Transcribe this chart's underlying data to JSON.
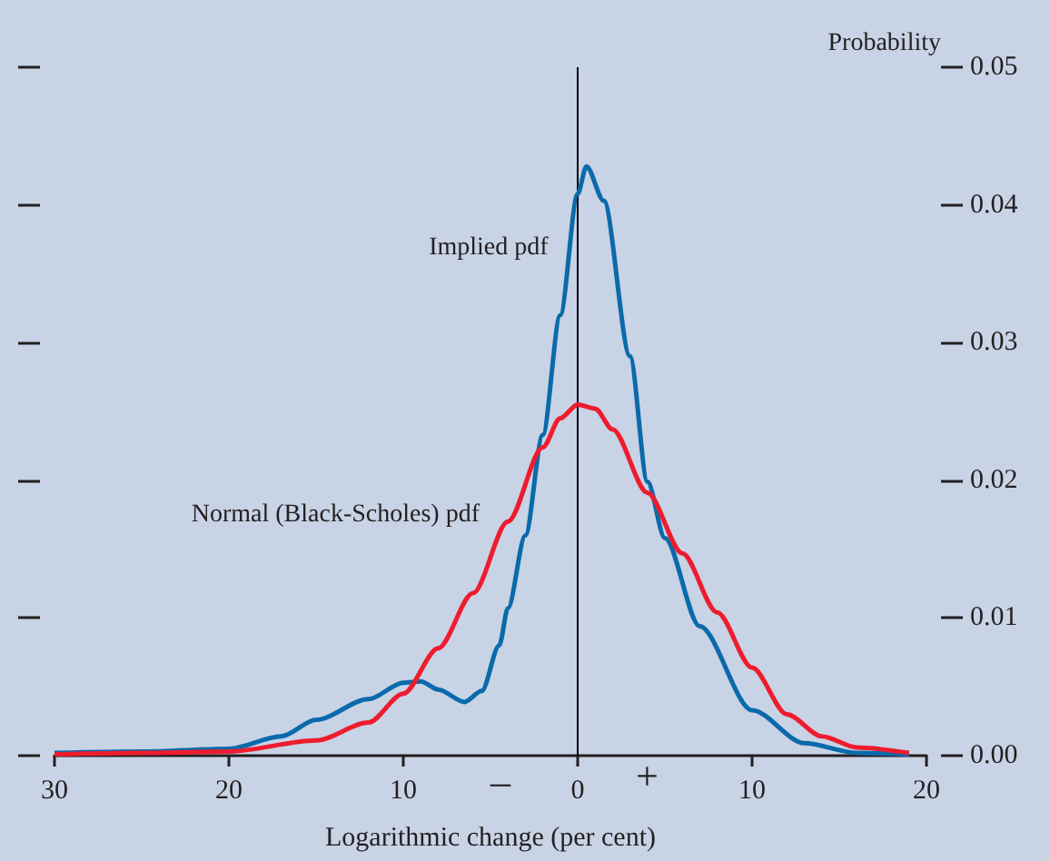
{
  "chart_data": {
    "type": "line",
    "xlabel": "Logarithmic change (per cent)",
    "ylabel": "Probability",
    "xlim": [
      -30,
      20
    ],
    "xticks": [
      {
        "value": -30,
        "label": "30"
      },
      {
        "value": -20,
        "label": "20"
      },
      {
        "value": -10,
        "label": "10"
      },
      0,
      10,
      20
    ],
    "ylim": [
      0,
      0.05
    ],
    "yticks": [
      {
        "value": 0,
        "label": "0.00"
      },
      0.01,
      0.02,
      0.03,
      0.04,
      0.05
    ],
    "series": [
      {
        "name": "Implied pdf",
        "color": "#0a6aab",
        "x": [
          -30,
          -25,
          -20,
          -17,
          -15,
          -12,
          -10,
          -9,
          -8,
          -6.5,
          -5.5,
          -4.5,
          -4,
          -3,
          -2,
          -1,
          0,
          0.5,
          1.5,
          3,
          4,
          5,
          7,
          10,
          13,
          16,
          19
        ],
        "values": [
          0.0002,
          0.0003,
          0.0005,
          0.0014,
          0.0026,
          0.0041,
          0.0053,
          0.0054,
          0.0048,
          0.0039,
          0.0047,
          0.008,
          0.0107,
          0.016,
          0.0233,
          0.032,
          0.0408,
          0.0428,
          0.0403,
          0.029,
          0.0199,
          0.0158,
          0.0094,
          0.0033,
          0.0009,
          0.0002,
          0.0001
        ]
      },
      {
        "name": "Normal (Black-Scholes) pdf",
        "color": "#ee1c2e",
        "x": [
          -30,
          -25,
          -20,
          -15,
          -12,
          -10,
          -8,
          -6,
          -4,
          -2,
          -1,
          0,
          1,
          2,
          4,
          6,
          8,
          10,
          12,
          14,
          16,
          19
        ],
        "values": [
          0.0001,
          0.0002,
          0.0003,
          0.0011,
          0.0024,
          0.0045,
          0.0078,
          0.0118,
          0.017,
          0.0224,
          0.0245,
          0.0255,
          0.0252,
          0.0237,
          0.0191,
          0.0147,
          0.0104,
          0.0064,
          0.003,
          0.0014,
          0.0006,
          0.0002
        ]
      }
    ],
    "ref_lines": [
      {
        "axis": "x",
        "value": 0,
        "color": "#000000"
      }
    ],
    "annotations": [
      "–",
      "+"
    ],
    "grid": false,
    "legend": false,
    "marker": "none",
    "line_style": "solid"
  }
}
